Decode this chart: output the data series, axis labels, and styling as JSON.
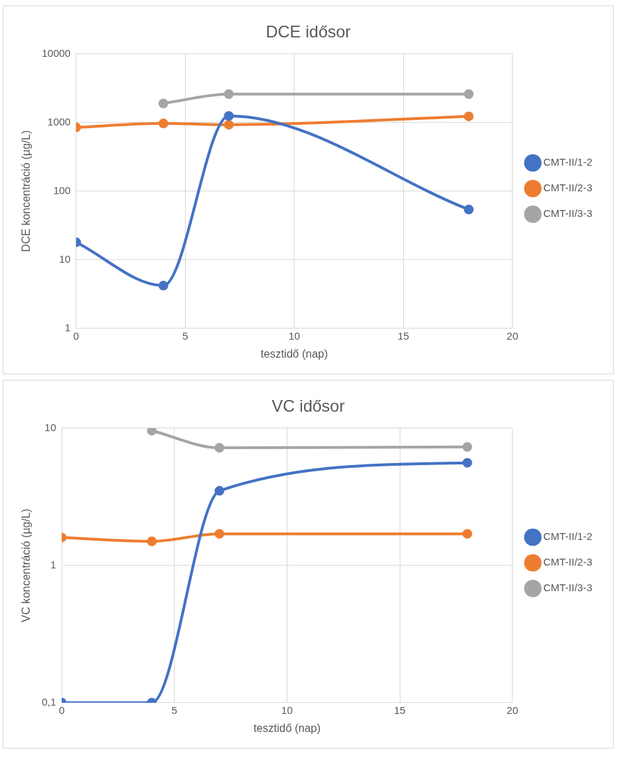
{
  "chart_data": [
    {
      "type": "line",
      "title": "DCE idősor",
      "xlabel": "tesztidő (nap)",
      "ylabel": "DCE koncentráció (µg/L)",
      "log": "y",
      "xlim": [
        0,
        20
      ],
      "xticks": [
        0,
        5,
        10,
        15,
        20
      ],
      "ylim": [
        1,
        10000
      ],
      "yticks": [
        1,
        10,
        100,
        1000,
        10000
      ],
      "grid": true,
      "legend": "right",
      "marker": "circle",
      "line_style": "solid",
      "series": [
        {
          "name": "CMT-II/1-2",
          "color": "#4472c4",
          "x": [
            0,
            4,
            7,
            18
          ],
          "values": [
            18,
            4.2,
            1250,
            54
          ]
        },
        {
          "name": "CMT-II/2-3",
          "color": "#ed7d31",
          "x": [
            0,
            4,
            7,
            18
          ],
          "values": [
            850,
            970,
            930,
            1230
          ]
        },
        {
          "name": "CMT-II/3-3",
          "color": "#a5a5a5",
          "x": [
            4,
            7,
            18
          ],
          "values": [
            1900,
            2600,
            2600
          ]
        }
      ]
    },
    {
      "type": "line",
      "title": "VC idősor",
      "xlabel": "tesztidő (nap)",
      "ylabel": "VC koncentráció (µg/L)",
      "log": "y",
      "xlim": [
        0,
        20
      ],
      "xticks": [
        0,
        5,
        10,
        15,
        20
      ],
      "ylim": [
        0.1,
        10
      ],
      "yticks": [
        {
          "value": 0.1,
          "label": "0,1"
        },
        1,
        10
      ],
      "grid": true,
      "legend": "right",
      "marker": "circle",
      "line_style": "solid",
      "series": [
        {
          "name": "CMT-II/1-2",
          "color": "#4472c4",
          "x": [
            0,
            4,
            7,
            18
          ],
          "values": [
            0.1,
            0.1,
            3.5,
            5.6
          ]
        },
        {
          "name": "CMT-II/2-3",
          "color": "#ed7d31",
          "x": [
            0,
            4,
            7,
            18
          ],
          "values": [
            1.6,
            1.5,
            1.7,
            1.7
          ]
        },
        {
          "name": "CMT-II/3-3",
          "color": "#a5a5a5",
          "x": [
            4,
            7,
            18
          ],
          "values": [
            9.6,
            7.2,
            7.3
          ]
        }
      ]
    }
  ]
}
